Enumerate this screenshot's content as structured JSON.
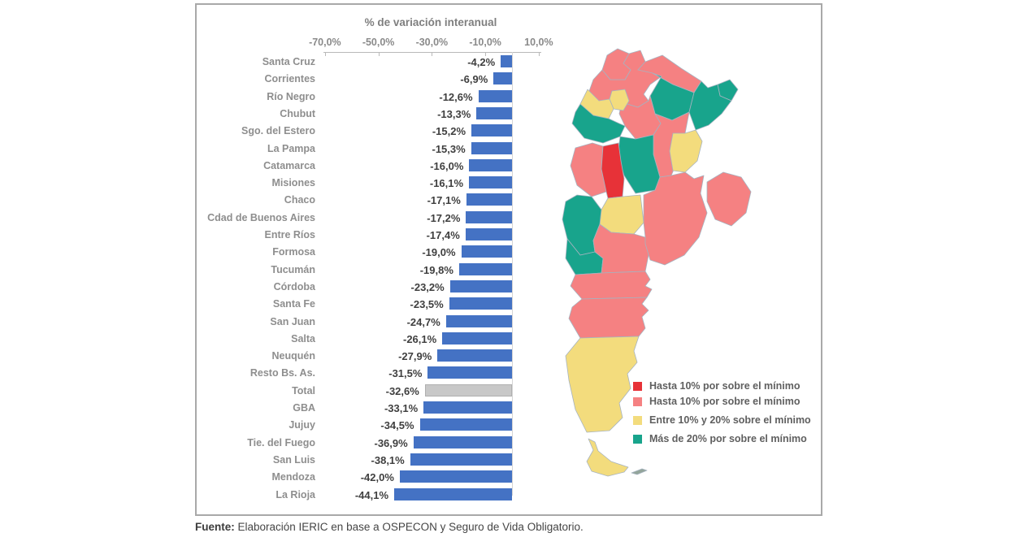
{
  "chart_data": {
    "type": "bar",
    "orientation": "horizontal",
    "title": "% de variación interanual",
    "xlabel": "% de variación interanual",
    "ylabel": "",
    "axis": {
      "ticks": [
        -70,
        -50,
        -30,
        -10,
        10
      ],
      "tick_labels": [
        "-70,0%",
        "-50,0%",
        "-30,0%",
        "-10,0%",
        "10,0%"
      ],
      "range": [
        -80,
        12
      ],
      "unit": "%",
      "grid": false
    },
    "categories": [
      "Santa Cruz",
      "Corrientes",
      "Río Negro",
      "Chubut",
      "Sgo. del Estero",
      "La Pampa",
      "Catamarca",
      "Misiones",
      "Chaco",
      "Cdad de Buenos Aires",
      "Entre Ríos",
      "Formosa",
      "Tucumán",
      "Córdoba",
      "Santa Fe",
      "San Juan",
      "Salta",
      "Neuquén",
      "Resto Bs. As.",
      "Total",
      "GBA",
      "Jujuy",
      "Tie. del Fuego",
      "San Luis",
      "Mendoza",
      "La Rioja"
    ],
    "values": [
      -4.2,
      -6.9,
      -12.6,
      -13.3,
      -15.2,
      -15.3,
      -16.0,
      -16.1,
      -17.1,
      -17.2,
      -17.4,
      -19.0,
      -19.8,
      -23.2,
      -23.5,
      -24.7,
      -26.1,
      -27.9,
      -31.5,
      -32.6,
      -33.1,
      -34.5,
      -36.9,
      -38.1,
      -42.0,
      -44.1
    ],
    "value_labels": [
      "-4,2%",
      "-6,9%",
      "-12,6%",
      "-13,3%",
      "-15,2%",
      "-15,3%",
      "-16,0%",
      "-16,1%",
      "-17,1%",
      "-17,2%",
      "-17,4%",
      "-19,0%",
      "-19,8%",
      "-23,2%",
      "-23,5%",
      "-24,7%",
      "-26,1%",
      "-27,9%",
      "-31,5%",
      "-32,6%",
      "-33,1%",
      "-34,5%",
      "-36,9%",
      "-38,1%",
      "-42,0%",
      "-44,1%"
    ],
    "highlight_category": "Total",
    "colors": {
      "bar": "#4472c4",
      "total_bar": "#c8c8c8",
      "total_bar_border": "#b0b0b0"
    }
  },
  "legend": {
    "position": "right-bottom",
    "items": [
      {
        "label": "Hasta 10% por sobre el mínimo",
        "color_key": "red"
      },
      {
        "label": "Hasta 10% por sobre el mínimo",
        "color_key": "salmon"
      },
      {
        "label": "Entre 10% y 20% sobre el mínimo",
        "color_key": "yellow"
      },
      {
        "label": "Más de 20% por sobre el mínimo",
        "color_key": "teal"
      }
    ]
  },
  "map": {
    "palette": {
      "red": "#e73238",
      "salmon": "#f58182",
      "yellow": "#f3dc7d",
      "teal": "#18a48c",
      "islet": "#93a59a"
    },
    "stroke": "#a6b3c0",
    "regions": [
      {
        "id": "r2",
        "category": "salmon"
      },
      {
        "id": "r1",
        "category": "salmon"
      },
      {
        "id": "r3",
        "category": "salmon"
      },
      {
        "id": "r4",
        "category": "teal"
      },
      {
        "id": "r5",
        "category": "teal"
      },
      {
        "id": "r6",
        "category": "teal"
      },
      {
        "id": "r7",
        "category": "salmon"
      },
      {
        "id": "r8",
        "category": "yellow"
      },
      {
        "id": "r9",
        "category": "yellow"
      },
      {
        "id": "r10",
        "category": "teal"
      },
      {
        "id": "r11",
        "category": "salmon"
      },
      {
        "id": "r12",
        "category": "yellow"
      },
      {
        "id": "r13",
        "category": "teal"
      },
      {
        "id": "r14",
        "category": "salmon"
      },
      {
        "id": "r15",
        "category": "red"
      },
      {
        "id": "r16",
        "category": "yellow"
      },
      {
        "id": "r17",
        "category": "teal"
      },
      {
        "id": "r18",
        "category": "teal"
      },
      {
        "id": "r19",
        "category": "salmon"
      },
      {
        "id": "r20",
        "category": "salmon"
      },
      {
        "id": "r21",
        "category": "salmon"
      },
      {
        "id": "r22",
        "category": "salmon"
      },
      {
        "id": "r23",
        "category": "salmon"
      },
      {
        "id": "r24",
        "category": "yellow"
      },
      {
        "id": "r25",
        "category": "yellow"
      },
      {
        "id": "r26",
        "category": "islet"
      }
    ]
  },
  "footer": {
    "prefix": "Fuente:",
    "text": " Elaboración IERIC en base a OSPECON y Seguro de Vida Obligatorio."
  }
}
